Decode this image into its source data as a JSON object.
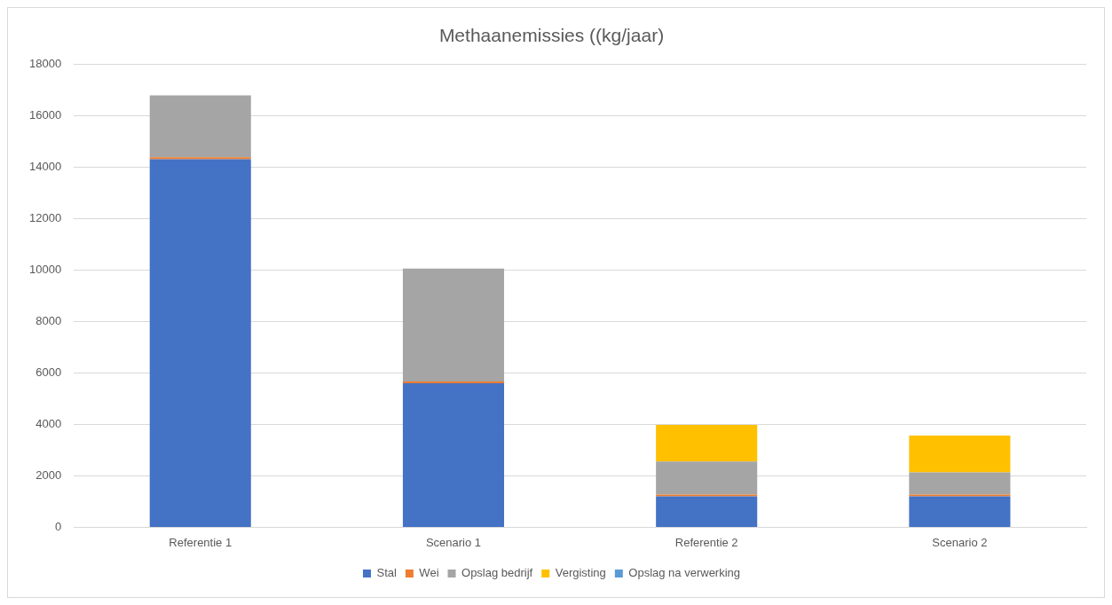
{
  "chart_data": {
    "type": "bar",
    "title": "Methaanemissies ((kg/jaar)",
    "categories": [
      "Referentie 1",
      "Scenario 1",
      "Referentie 2",
      "Scenario 2"
    ],
    "stacked": true,
    "ylim": [
      0,
      18000
    ],
    "yticks": [
      0,
      2000,
      4000,
      6000,
      8000,
      10000,
      12000,
      14000,
      16000,
      18000
    ],
    "grid": "y",
    "legend": "bottom",
    "series": [
      {
        "name": "Stal",
        "color": "#4472c4",
        "values": [
          14300,
          5600,
          1200,
          1200
        ]
      },
      {
        "name": "Wei",
        "color": "#ed7d31",
        "values": [
          80,
          70,
          70,
          70
        ]
      },
      {
        "name": "Opslag bedrijf",
        "color": "#a5a5a5",
        "values": [
          2400,
          4380,
          1290,
          860
        ]
      },
      {
        "name": "Vergisting",
        "color": "#ffc000",
        "values": [
          0,
          0,
          1420,
          1430
        ]
      },
      {
        "name": "Opslag na verwerking",
        "color": "#5b9bd5",
        "values": [
          0,
          0,
          0,
          0
        ]
      }
    ]
  }
}
